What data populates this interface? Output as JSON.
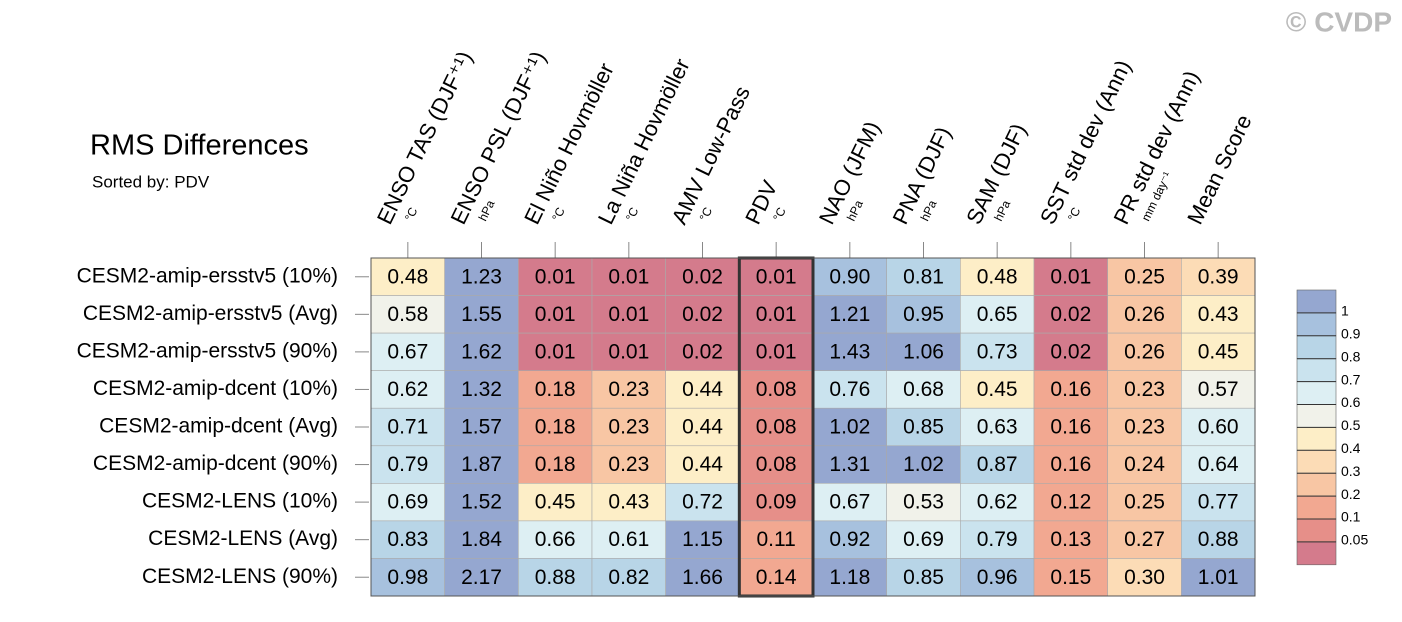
{
  "chart_data": {
    "type": "heatmap",
    "title": "RMS Differences",
    "subtitle": "Sorted by: PDV",
    "watermark": "© CVDP",
    "highlight_column": "PDV",
    "columns": [
      "ENSO TAS (DJF⁺¹)",
      "ENSO PSL (DJF⁺¹)",
      "El Niño Hovmöller",
      "La Niña Hovmöller",
      "AMV Low-Pass",
      "PDV",
      "NAO (JFM)",
      "PNA (DJF)",
      "SAM (DJF)",
      "SST std dev (Ann)",
      "PR std dev (Ann)",
      "Mean Score"
    ],
    "units": [
      "°C",
      "hPa",
      "°C",
      "°C",
      "°C",
      "°C",
      "hPa",
      "hPa",
      "hPa",
      "°C",
      "mm day⁻¹",
      null
    ],
    "rows": [
      "CESM2-amip-ersstv5 (10%)",
      "CESM2-amip-ersstv5 (Avg)",
      "CESM2-amip-ersstv5 (90%)",
      "CESM2-amip-dcent (10%)",
      "CESM2-amip-dcent (Avg)",
      "CESM2-amip-dcent (90%)",
      "CESM2-LENS (10%)",
      "CESM2-LENS (Avg)",
      "CESM2-LENS (90%)"
    ],
    "values": [
      [
        0.48,
        1.23,
        0.01,
        0.01,
        0.02,
        0.01,
        0.9,
        0.81,
        0.48,
        0.01,
        0.25,
        0.39
      ],
      [
        0.58,
        1.55,
        0.01,
        0.01,
        0.02,
        0.01,
        1.21,
        0.95,
        0.65,
        0.02,
        0.26,
        0.43
      ],
      [
        0.67,
        1.62,
        0.01,
        0.01,
        0.02,
        0.01,
        1.43,
        1.06,
        0.73,
        0.02,
        0.26,
        0.45
      ],
      [
        0.62,
        1.32,
        0.18,
        0.23,
        0.44,
        0.08,
        0.76,
        0.68,
        0.45,
        0.16,
        0.23,
        0.57
      ],
      [
        0.71,
        1.57,
        0.18,
        0.23,
        0.44,
        0.08,
        1.02,
        0.85,
        0.63,
        0.16,
        0.23,
        0.6
      ],
      [
        0.79,
        1.87,
        0.18,
        0.23,
        0.44,
        0.08,
        1.31,
        1.02,
        0.87,
        0.16,
        0.24,
        0.64
      ],
      [
        0.69,
        1.52,
        0.45,
        0.43,
        0.72,
        0.09,
        0.67,
        0.53,
        0.62,
        0.12,
        0.25,
        0.77
      ],
      [
        0.83,
        1.84,
        0.66,
        0.61,
        1.15,
        0.11,
        0.92,
        0.69,
        0.79,
        0.13,
        0.27,
        0.88
      ],
      [
        0.98,
        2.17,
        0.88,
        0.82,
        1.66,
        0.14,
        1.18,
        0.85,
        0.96,
        0.15,
        0.3,
        1.01
      ]
    ],
    "value_labels": [
      [
        "0.48",
        "1.23",
        "0.01",
        "0.01",
        "0.02",
        "0.01",
        "0.90",
        "0.81",
        "0.48",
        "0.01",
        "0.25",
        "0.39"
      ],
      [
        "0.58",
        "1.55",
        "0.01",
        "0.01",
        "0.02",
        "0.01",
        "1.21",
        "0.95",
        "0.65",
        "0.02",
        "0.26",
        "0.43"
      ],
      [
        "0.67",
        "1.62",
        "0.01",
        "0.01",
        "0.02",
        "0.01",
        "1.43",
        "1.06",
        "0.73",
        "0.02",
        "0.26",
        "0.45"
      ],
      [
        "0.62",
        "1.32",
        "0.18",
        "0.23",
        "0.44",
        "0.08",
        "0.76",
        "0.68",
        "0.45",
        "0.16",
        "0.23",
        "0.57"
      ],
      [
        "0.71",
        "1.57",
        "0.18",
        "0.23",
        "0.44",
        "0.08",
        "1.02",
        "0.85",
        "0.63",
        "0.16",
        "0.23",
        "0.60"
      ],
      [
        "0.79",
        "1.87",
        "0.18",
        "0.23",
        "0.44",
        "0.08",
        "1.31",
        "1.02",
        "0.87",
        "0.16",
        "0.24",
        "0.64"
      ],
      [
        "0.69",
        "1.52",
        "0.45",
        "0.43",
        "0.72",
        "0.09",
        "0.67",
        "0.53",
        "0.62",
        "0.12",
        "0.25",
        "0.77"
      ],
      [
        "0.83",
        "1.84",
        "0.66",
        "0.61",
        "1.15",
        "0.11",
        "0.92",
        "0.69",
        "0.79",
        "0.13",
        "0.27",
        "0.88"
      ],
      [
        "0.98",
        "2.17",
        "0.88",
        "0.82",
        "1.66",
        "0.14",
        "1.18",
        "0.85",
        "0.96",
        "0.15",
        "0.30",
        "1.01"
      ]
    ],
    "colorbar": {
      "levels": [
        1,
        0.9,
        0.8,
        0.7,
        0.6,
        0.5,
        0.4,
        0.3,
        0.2,
        0.1,
        0.05
      ],
      "colors": [
        "#95a7d0",
        "#a7c1de",
        "#b8d5e7",
        "#cae3ee",
        "#ddeff3",
        "#f1f2ea",
        "#fdeec7",
        "#fcdcb6",
        "#f8c6a4",
        "#f2a891",
        "#e68f89",
        "#d47b8c"
      ]
    }
  }
}
